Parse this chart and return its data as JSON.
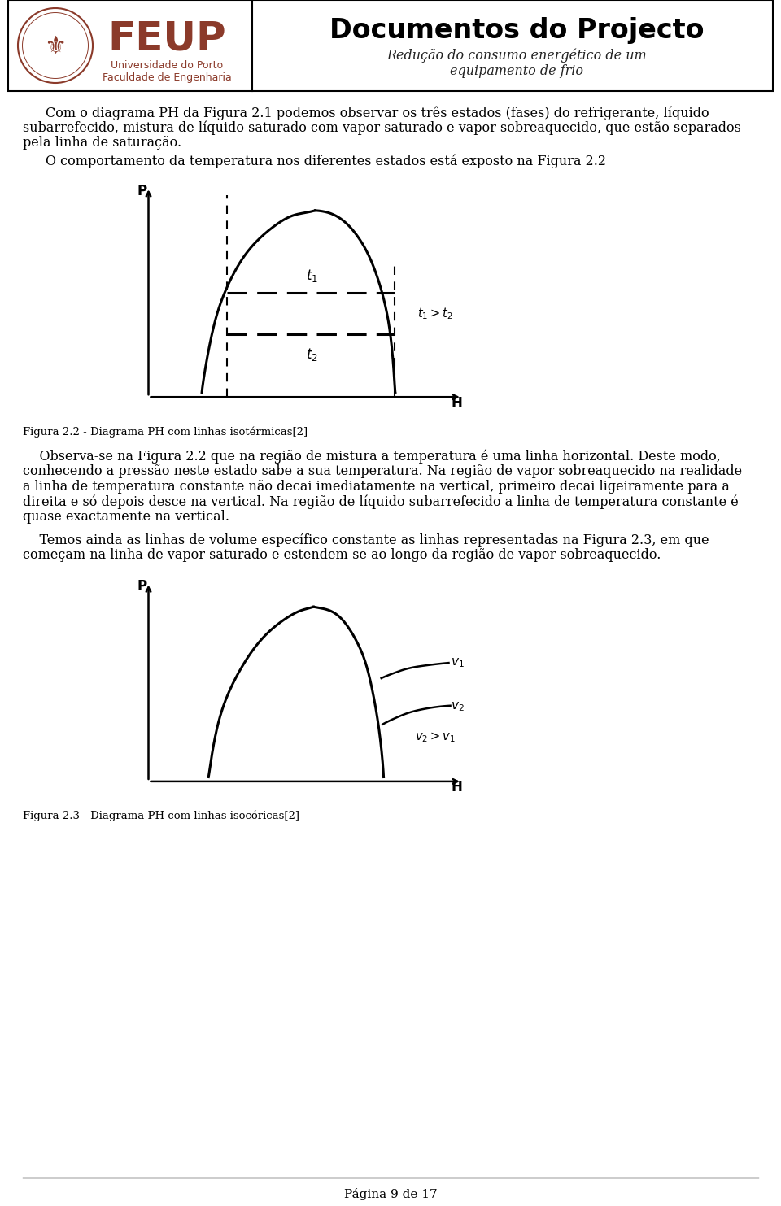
{
  "page_bg": "#ffffff",
  "header_title": "Documentos do Projecto",
  "header_subtitle1": "Redução do consumo energético de um",
  "header_subtitle2": "equipamento de frio",
  "header_feup_text1": "Universidade do Porto",
  "header_feup_text2": "Faculdade de Engenharia",
  "para1_line1": "Com o diagrama PH da Figura 2.1 podemos observar os três estados (fases) do refrigerante, líquido",
  "para1_line2": "subarrefecido, mistura de líquido saturado com vapor saturado e vapor sobreaquecido, que estão separados",
  "para1_line3": "pela linha de saturação.",
  "para2": "O comportamento da temperatura nos diferentes estados está exposto na Figura 2.2",
  "fig22_caption": "Figura 2.2 - Diagrama PH com linhas isotérmicas[2]",
  "para3_line1": "    Observa-se na Figura 2.2 que na região de mistura a temperatura é uma linha horizontal. Deste modo,",
  "para3_line2": "conhecendo a pressão neste estado sabe a sua temperatura. Na região de vapor sobreaquecido na realidade",
  "para3_line3": "a linha de temperatura constante não decai imediatamente na vertical, primeiro decai ligeiramente para a",
  "para3_line4": "direita e só depois desce na vertical. Na região de líquido subarrefecido a linha de temperatura constante é",
  "para3_line5": "quase exactamente na vertical.",
  "para4_line1": "    Temos ainda as linhas de volume específico constante as linhas representadas na Figura 2.3, em que",
  "para4_line2": "começam na linha de vapor saturado e estendem-se ao longo da região de vapor sobreaquecido.",
  "fig23_caption": "Figura 2.3 - Diagrama PH com linhas isocóricas[2]",
  "footer_text": "Página 9 de 17",
  "text_color": "#000000",
  "feup_color": "#8B3A2A",
  "header_title_color": "#000000"
}
